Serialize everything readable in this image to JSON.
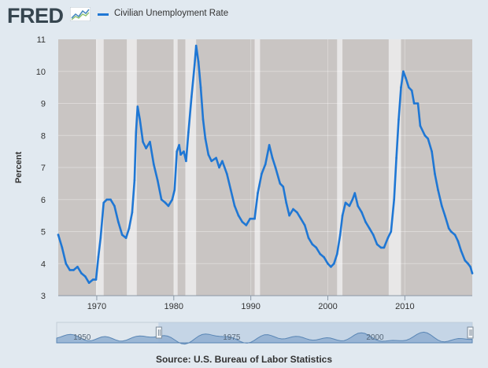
{
  "header": {
    "logo_text": "FRED",
    "legend_label": "Civilian Unemployment Rate"
  },
  "source_text": "Source: U.S. Bureau of Labor Statistics",
  "colors": {
    "line": "#1f77d4",
    "plot_background": "#c9c5c3",
    "recession": "#e8e7e7",
    "page_background": "#e1e9f0"
  },
  "navigator": {
    "ticks": [
      "1950",
      "1975",
      "2000"
    ]
  },
  "chart_data": {
    "type": "line",
    "title": "",
    "xlabel": "",
    "ylabel": "Percent",
    "xlim": [
      1965.0,
      2018.75
    ],
    "ylim": [
      3,
      11
    ],
    "x_ticks": [
      "1970",
      "1980",
      "1990",
      "2000",
      "2010"
    ],
    "y_ticks": [
      "3",
      "4",
      "5",
      "6",
      "7",
      "8",
      "9",
      "10",
      "11"
    ],
    "grid": true,
    "legend": "top-left",
    "recessions": [
      [
        1969.9,
        1970.9
      ],
      [
        1973.9,
        1975.2
      ],
      [
        1980.0,
        1980.5
      ],
      [
        1981.5,
        1982.9
      ],
      [
        1990.5,
        1991.2
      ],
      [
        2001.2,
        2001.9
      ],
      [
        2007.9,
        2009.5
      ]
    ],
    "series": [
      {
        "name": "Civilian Unemployment Rate",
        "points": [
          [
            1965.0,
            4.9
          ],
          [
            1965.5,
            4.5
          ],
          [
            1966.0,
            4.0
          ],
          [
            1966.5,
            3.8
          ],
          [
            1967.0,
            3.8
          ],
          [
            1967.5,
            3.9
          ],
          [
            1968.0,
            3.7
          ],
          [
            1968.5,
            3.6
          ],
          [
            1969.0,
            3.4
          ],
          [
            1969.5,
            3.5
          ],
          [
            1969.9,
            3.5
          ],
          [
            1970.2,
            4.2
          ],
          [
            1970.5,
            4.8
          ],
          [
            1970.9,
            5.9
          ],
          [
            1971.3,
            6.0
          ],
          [
            1971.8,
            6.0
          ],
          [
            1972.3,
            5.8
          ],
          [
            1972.8,
            5.3
          ],
          [
            1973.3,
            4.9
          ],
          [
            1973.8,
            4.8
          ],
          [
            1974.2,
            5.1
          ],
          [
            1974.6,
            5.6
          ],
          [
            1974.9,
            6.6
          ],
          [
            1975.1,
            8.1
          ],
          [
            1975.3,
            8.9
          ],
          [
            1975.6,
            8.5
          ],
          [
            1976.0,
            7.8
          ],
          [
            1976.4,
            7.6
          ],
          [
            1976.9,
            7.8
          ],
          [
            1977.4,
            7.1
          ],
          [
            1977.9,
            6.6
          ],
          [
            1978.4,
            6.0
          ],
          [
            1978.9,
            5.9
          ],
          [
            1979.3,
            5.8
          ],
          [
            1979.8,
            6.0
          ],
          [
            1980.1,
            6.3
          ],
          [
            1980.4,
            7.5
          ],
          [
            1980.7,
            7.7
          ],
          [
            1980.9,
            7.4
          ],
          [
            1981.3,
            7.5
          ],
          [
            1981.6,
            7.2
          ],
          [
            1981.9,
            8.1
          ],
          [
            1982.3,
            9.2
          ],
          [
            1982.7,
            10.2
          ],
          [
            1982.9,
            10.8
          ],
          [
            1983.2,
            10.3
          ],
          [
            1983.5,
            9.5
          ],
          [
            1983.8,
            8.5
          ],
          [
            1984.1,
            7.9
          ],
          [
            1984.5,
            7.4
          ],
          [
            1984.9,
            7.2
          ],
          [
            1985.5,
            7.3
          ],
          [
            1985.9,
            7.0
          ],
          [
            1986.3,
            7.2
          ],
          [
            1986.9,
            6.8
          ],
          [
            1987.4,
            6.3
          ],
          [
            1987.9,
            5.8
          ],
          [
            1988.4,
            5.5
          ],
          [
            1988.9,
            5.3
          ],
          [
            1989.4,
            5.2
          ],
          [
            1989.9,
            5.4
          ],
          [
            1990.5,
            5.4
          ],
          [
            1990.9,
            6.2
          ],
          [
            1991.4,
            6.8
          ],
          [
            1991.9,
            7.1
          ],
          [
            1992.4,
            7.7
          ],
          [
            1992.8,
            7.3
          ],
          [
            1993.2,
            7.0
          ],
          [
            1993.8,
            6.5
          ],
          [
            1994.2,
            6.4
          ],
          [
            1994.6,
            5.9
          ],
          [
            1995.0,
            5.5
          ],
          [
            1995.5,
            5.7
          ],
          [
            1996.0,
            5.6
          ],
          [
            1996.5,
            5.4
          ],
          [
            1997.0,
            5.2
          ],
          [
            1997.5,
            4.8
          ],
          [
            1998.0,
            4.6
          ],
          [
            1998.5,
            4.5
          ],
          [
            1999.0,
            4.3
          ],
          [
            1999.5,
            4.2
          ],
          [
            2000.0,
            4.0
          ],
          [
            2000.4,
            3.9
          ],
          [
            2000.8,
            4.0
          ],
          [
            2001.2,
            4.3
          ],
          [
            2001.6,
            4.9
          ],
          [
            2001.9,
            5.5
          ],
          [
            2002.3,
            5.9
          ],
          [
            2002.8,
            5.8
          ],
          [
            2003.2,
            6.0
          ],
          [
            2003.5,
            6.2
          ],
          [
            2003.9,
            5.8
          ],
          [
            2004.4,
            5.6
          ],
          [
            2004.9,
            5.3
          ],
          [
            2005.4,
            5.1
          ],
          [
            2005.9,
            4.9
          ],
          [
            2006.4,
            4.6
          ],
          [
            2006.9,
            4.5
          ],
          [
            2007.3,
            4.5
          ],
          [
            2007.8,
            4.8
          ],
          [
            2008.2,
            5.0
          ],
          [
            2008.6,
            6.0
          ],
          [
            2008.9,
            7.3
          ],
          [
            2009.2,
            8.5
          ],
          [
            2009.5,
            9.5
          ],
          [
            2009.8,
            10.0
          ],
          [
            2010.1,
            9.8
          ],
          [
            2010.5,
            9.5
          ],
          [
            2010.9,
            9.4
          ],
          [
            2011.2,
            9.0
          ],
          [
            2011.7,
            9.0
          ],
          [
            2012.0,
            8.3
          ],
          [
            2012.6,
            8.0
          ],
          [
            2013.0,
            7.9
          ],
          [
            2013.5,
            7.5
          ],
          [
            2013.9,
            6.8
          ],
          [
            2014.3,
            6.3
          ],
          [
            2014.8,
            5.8
          ],
          [
            2015.2,
            5.5
          ],
          [
            2015.7,
            5.1
          ],
          [
            2016.0,
            5.0
          ],
          [
            2016.5,
            4.9
          ],
          [
            2016.9,
            4.7
          ],
          [
            2017.3,
            4.4
          ],
          [
            2017.8,
            4.1
          ],
          [
            2018.2,
            4.0
          ],
          [
            2018.5,
            3.9
          ],
          [
            2018.75,
            3.7
          ]
        ]
      }
    ]
  }
}
